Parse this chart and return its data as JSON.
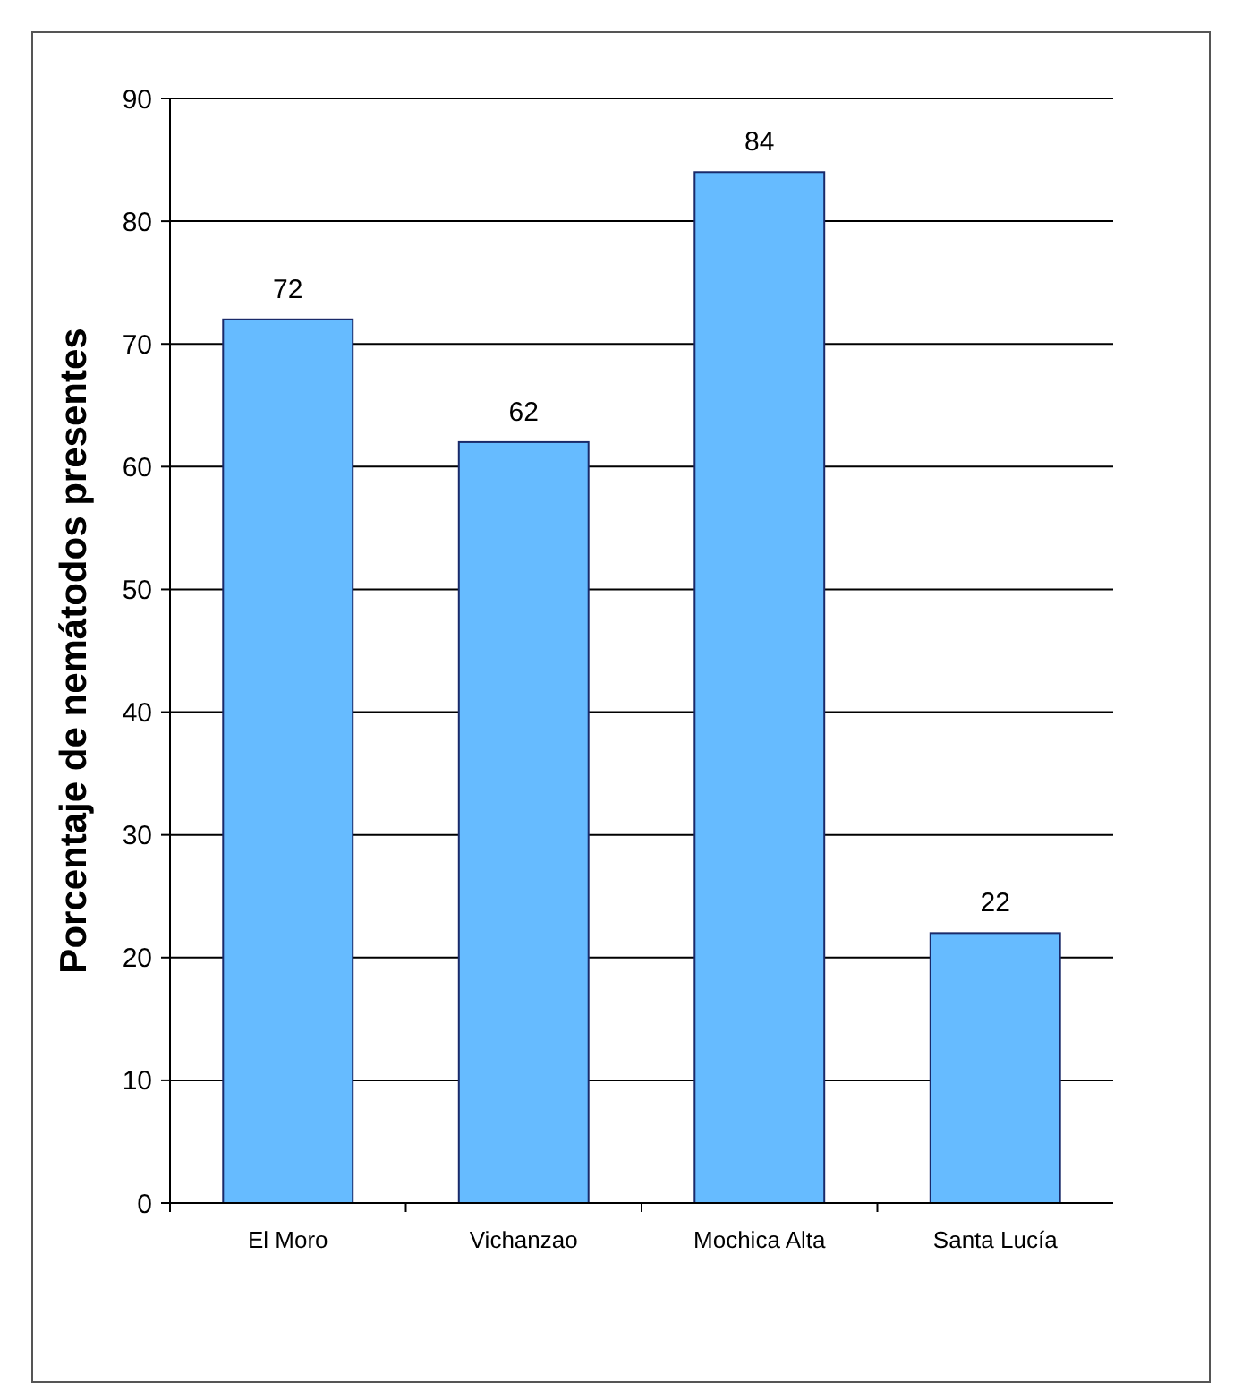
{
  "chart_data": {
    "type": "bar",
    "ylabel": "Porcentaje de nemátodos presentes",
    "categories": [
      "El Moro",
      "Vichanzao",
      "Mochica Alta",
      "Santa Lucía"
    ],
    "values": [
      72,
      62,
      84,
      22
    ],
    "color": "#66bbff",
    "ylim": [
      0,
      90
    ],
    "yticks": [
      0,
      10,
      20,
      30,
      40,
      50,
      60,
      70,
      80,
      90
    ],
    "grid": "y",
    "data_labels": true
  }
}
